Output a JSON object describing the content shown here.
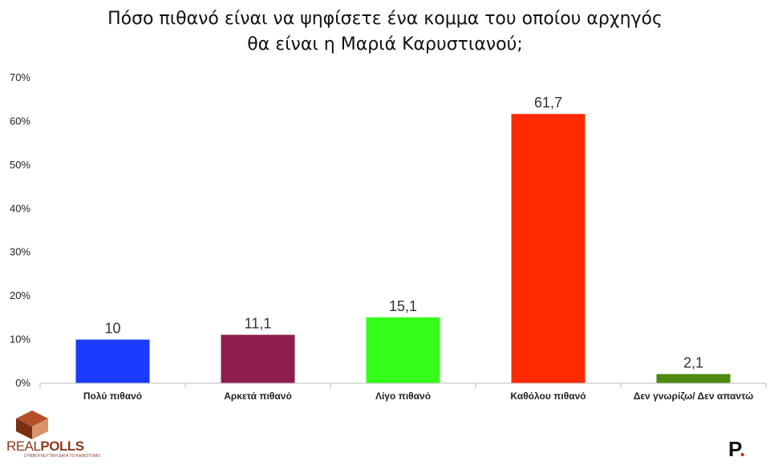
{
  "title_line1": "Πόσο πιθανό είναι να ψηφίσετε ένα κομμα του οποίου αρχηγός",
  "title_line2": "θα είναι η Μαριά Καρυστιανού;",
  "chart_data": {
    "type": "bar",
    "categories": [
      "Πολύ πιθανό",
      "Αρκετά πιθανό",
      "Λίγο πιθανό",
      "Καθόλου πιθανό",
      "Δεν γνωρίζω/ Δεν απαντώ"
    ],
    "values": [
      10,
      11.1,
      15.1,
      61.7,
      2.1
    ],
    "value_labels": [
      "10",
      "11,1",
      "15,1",
      "61,7",
      "2,1"
    ],
    "colors": [
      "#1a3cff",
      "#8e1d4f",
      "#33ff1a",
      "#ff2a00",
      "#4d8a0f"
    ],
    "ylim": [
      0,
      70
    ],
    "yticks": [
      0,
      10,
      20,
      30,
      40,
      50,
      60,
      70
    ],
    "ytick_labels": [
      "0%",
      "10%",
      "20%",
      "30%",
      "40%",
      "50%",
      "60%",
      "70%"
    ],
    "grid": false
  },
  "logos": {
    "left_text_light": "REAL",
    "left_text_bold": "POLLS",
    "left_tagline": "ΣΥΜΒΟΥΛΕΥΤΙΚΗ ΔΑΤΑ ΤΟ ΚΑΙΝΟΤΟΜΟ",
    "right_letter": "P",
    "right_dot": "."
  }
}
